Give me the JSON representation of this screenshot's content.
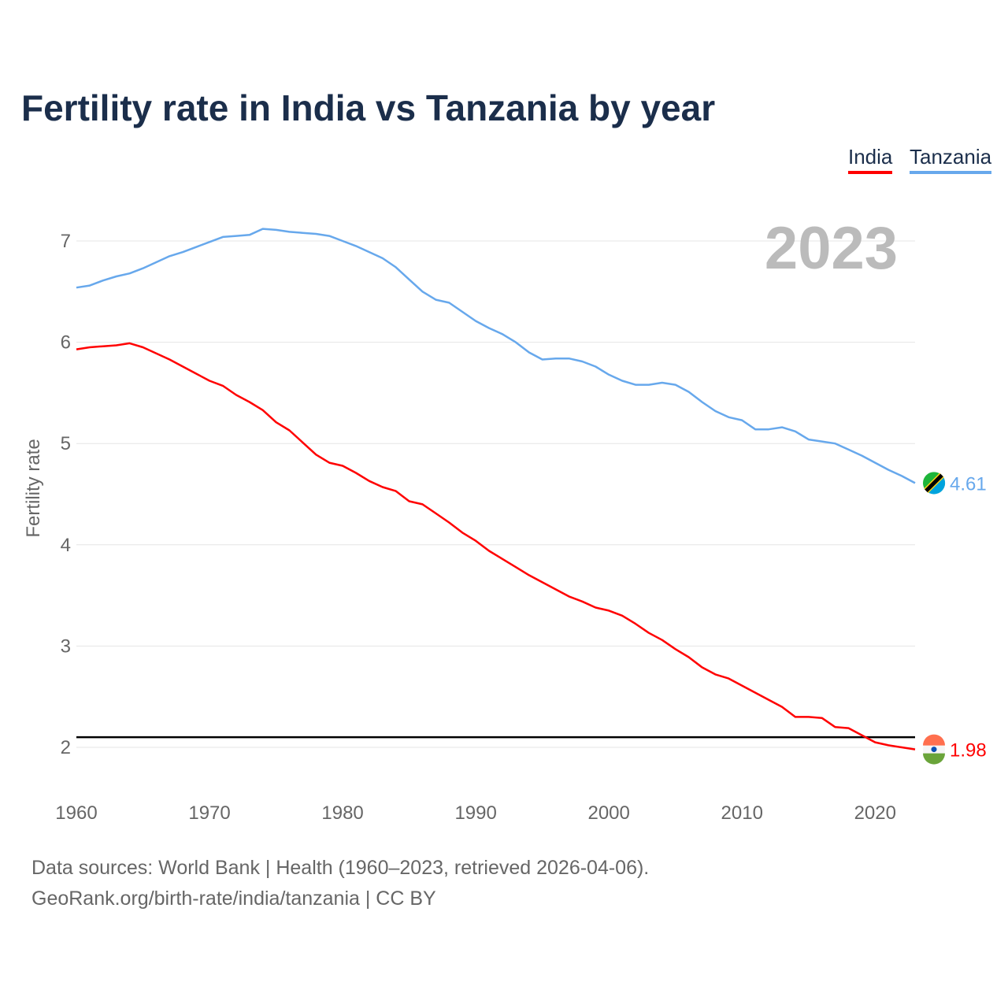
{
  "chart_data": {
    "type": "line",
    "title": "Fertility rate in India vs Tanzania by year",
    "xlabel": "",
    "ylabel": "Fertility rate",
    "xlim": [
      1960,
      2023
    ],
    "ylim": [
      2,
      7
    ],
    "x_ticks": [
      1960,
      1970,
      1980,
      1990,
      2000,
      2010,
      2020
    ],
    "y_ticks": [
      2,
      3,
      4,
      5,
      6,
      7
    ],
    "grid": true,
    "legend_position": "top-right",
    "year_label": "2023",
    "reference_line": 2.1,
    "x": [
      1960,
      1961,
      1962,
      1963,
      1964,
      1965,
      1966,
      1967,
      1968,
      1969,
      1970,
      1971,
      1972,
      1973,
      1974,
      1975,
      1976,
      1977,
      1978,
      1979,
      1980,
      1981,
      1982,
      1983,
      1984,
      1985,
      1986,
      1987,
      1988,
      1989,
      1990,
      1991,
      1992,
      1993,
      1994,
      1995,
      1996,
      1997,
      1998,
      1999,
      2000,
      2001,
      2002,
      2003,
      2004,
      2005,
      2006,
      2007,
      2008,
      2009,
      2010,
      2011,
      2012,
      2013,
      2014,
      2015,
      2016,
      2017,
      2018,
      2019,
      2020,
      2021,
      2022,
      2023
    ],
    "series": [
      {
        "name": "India",
        "color": "#ff0000",
        "end_label": "1.98",
        "values": [
          5.93,
          5.95,
          5.96,
          5.97,
          5.99,
          5.95,
          5.89,
          5.83,
          5.76,
          5.69,
          5.62,
          5.57,
          5.48,
          5.41,
          5.33,
          5.21,
          5.13,
          5.01,
          4.89,
          4.81,
          4.78,
          4.71,
          4.63,
          4.57,
          4.53,
          4.43,
          4.4,
          4.31,
          4.22,
          4.12,
          4.04,
          3.94,
          3.86,
          3.78,
          3.7,
          3.63,
          3.56,
          3.49,
          3.44,
          3.38,
          3.35,
          3.3,
          3.22,
          3.13,
          3.06,
          2.97,
          2.89,
          2.79,
          2.72,
          2.68,
          2.61,
          2.54,
          2.47,
          2.4,
          2.3,
          2.3,
          2.29,
          2.2,
          2.19,
          2.12,
          2.05,
          2.02,
          2.0,
          1.98
        ]
      },
      {
        "name": "Tanzania",
        "color": "#67a8ec",
        "end_label": "4.61",
        "values": [
          6.54,
          6.56,
          6.61,
          6.65,
          6.68,
          6.73,
          6.79,
          6.85,
          6.89,
          6.94,
          6.99,
          7.04,
          7.05,
          7.06,
          7.12,
          7.11,
          7.09,
          7.08,
          7.07,
          7.05,
          7.0,
          6.95,
          6.89,
          6.83,
          6.74,
          6.62,
          6.5,
          6.42,
          6.39,
          6.3,
          6.21,
          6.14,
          6.08,
          6.0,
          5.9,
          5.83,
          5.84,
          5.84,
          5.81,
          5.76,
          5.68,
          5.62,
          5.58,
          5.58,
          5.6,
          5.58,
          5.51,
          5.41,
          5.32,
          5.26,
          5.23,
          5.14,
          5.14,
          5.16,
          5.12,
          5.04,
          5.02,
          5.0,
          4.94,
          4.88,
          4.81,
          4.74,
          4.68,
          4.61
        ]
      }
    ]
  },
  "footer": {
    "source": "Data sources: World Bank | Health (1960–2023, retrieved 2026-04-06).",
    "credit": "GeoRank.org/birth-rate/india/tanzania | CC BY"
  }
}
